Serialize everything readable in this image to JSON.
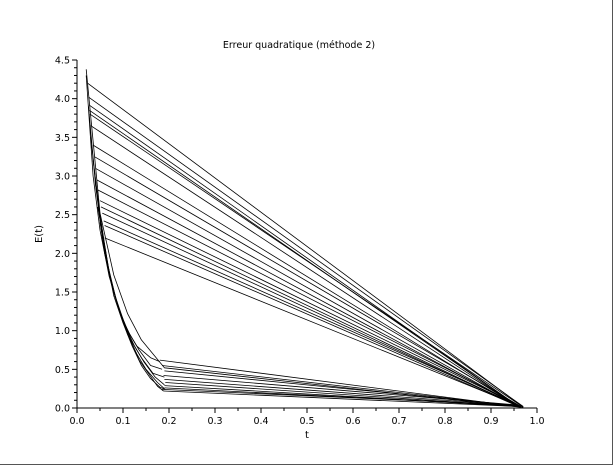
{
  "chart_data": {
    "type": "line",
    "title": "Erreur quadratique (méthode 2)",
    "xlabel": "t",
    "ylabel": "E(t)",
    "xlim": [
      0,
      1
    ],
    "ylim": [
      0,
      4.5
    ],
    "xticks": [
      "0.0",
      "0.1",
      "0.2",
      "0.3",
      "0.4",
      "0.5",
      "0.6",
      "0.7",
      "0.8",
      "0.9",
      "1.0"
    ],
    "yticks": [
      "0.0",
      "0.5",
      "1.0",
      "1.5",
      "2.0",
      "2.5",
      "3.0",
      "3.5",
      "4.0",
      "4.5"
    ],
    "grid": false,
    "legend": "none",
    "line_color": "#000000",
    "series": [
      {
        "x": [
          0.02,
          0.05,
          0.08,
          0.11,
          0.14,
          0.19,
          0.965
        ],
        "y": [
          4.38,
          2.52,
          1.72,
          1.22,
          0.88,
          0.52,
          0.01
        ]
      },
      {
        "x": [
          0.023,
          0.97
        ],
        "y": [
          4.2,
          0.01
        ]
      },
      {
        "x": [
          0.025,
          0.97
        ],
        "y": [
          4.02,
          0.02
        ]
      },
      {
        "x": [
          0.026,
          0.96
        ],
        "y": [
          3.92,
          0.02
        ]
      },
      {
        "x": [
          0.027,
          0.96
        ],
        "y": [
          3.85,
          0.02
        ]
      },
      {
        "x": [
          0.028,
          0.97
        ],
        "y": [
          3.8,
          0.01
        ]
      },
      {
        "x": [
          0.03,
          0.96
        ],
        "y": [
          3.65,
          0.02
        ]
      },
      {
        "x": [
          0.035,
          0.96
        ],
        "y": [
          3.4,
          0.02
        ]
      },
      {
        "x": [
          0.038,
          0.965
        ],
        "y": [
          3.25,
          0.02
        ]
      },
      {
        "x": [
          0.04,
          0.96
        ],
        "y": [
          3.1,
          0.02
        ]
      },
      {
        "x": [
          0.043,
          0.96
        ],
        "y": [
          2.95,
          0.02
        ]
      },
      {
        "x": [
          0.045,
          0.965
        ],
        "y": [
          2.82,
          0.02
        ]
      },
      {
        "x": [
          0.05,
          0.965
        ],
        "y": [
          2.68,
          0.02
        ]
      },
      {
        "x": [
          0.052,
          0.96
        ],
        "y": [
          2.6,
          0.02
        ]
      },
      {
        "x": [
          0.055,
          0.96
        ],
        "y": [
          2.52,
          0.02
        ]
      },
      {
        "x": [
          0.058,
          0.965
        ],
        "y": [
          2.42,
          0.02
        ]
      },
      {
        "x": [
          0.06,
          0.96
        ],
        "y": [
          2.36,
          0.02
        ]
      },
      {
        "x": [
          0.06,
          0.965
        ],
        "y": [
          2.2,
          0.02
        ]
      },
      {
        "x": [
          0.18,
          0.97
        ],
        "y": [
          0.62,
          0.01
        ]
      },
      {
        "x": [
          0.185,
          0.965
        ],
        "y": [
          0.55,
          0.02
        ]
      },
      {
        "x": [
          0.19,
          0.96
        ],
        "y": [
          0.48,
          0.03
        ]
      },
      {
        "x": [
          0.188,
          0.955
        ],
        "y": [
          0.42,
          0.04
        ]
      },
      {
        "x": [
          0.19,
          0.96
        ],
        "y": [
          0.37,
          0.03
        ]
      },
      {
        "x": [
          0.192,
          0.965
        ],
        "y": [
          0.33,
          0.02
        ]
      },
      {
        "x": [
          0.19,
          0.96
        ],
        "y": [
          0.29,
          0.02
        ]
      },
      {
        "x": [
          0.19,
          0.955
        ],
        "y": [
          0.26,
          0.03
        ]
      },
      {
        "x": [
          0.185,
          0.95
        ],
        "y": [
          0.24,
          0.04
        ]
      },
      {
        "x": [
          0.188,
          0.96
        ],
        "y": [
          0.22,
          0.02
        ]
      },
      {
        "x": [
          0.02,
          0.035,
          0.05,
          0.07,
          0.09,
          0.11,
          0.13,
          0.16,
          0.18
        ],
        "y": [
          4.3,
          3.0,
          2.3,
          1.7,
          1.3,
          1.0,
          0.8,
          0.65,
          0.6
        ]
      },
      {
        "x": [
          0.025,
          0.04,
          0.055,
          0.075,
          0.095,
          0.115,
          0.135,
          0.16,
          0.185
        ],
        "y": [
          3.9,
          2.9,
          2.2,
          1.6,
          1.2,
          0.95,
          0.75,
          0.55,
          0.5
        ]
      },
      {
        "x": [
          0.03,
          0.045,
          0.06,
          0.08,
          0.1,
          0.12,
          0.14,
          0.165,
          0.19
        ],
        "y": [
          3.5,
          2.7,
          2.0,
          1.5,
          1.15,
          0.85,
          0.65,
          0.45,
          0.4
        ]
      },
      {
        "x": [
          0.035,
          0.05,
          0.065,
          0.085,
          0.105,
          0.125,
          0.145,
          0.17,
          0.19
        ],
        "y": [
          3.2,
          2.5,
          1.9,
          1.4,
          1.05,
          0.8,
          0.6,
          0.4,
          0.3
        ]
      },
      {
        "x": [
          0.04,
          0.055,
          0.07,
          0.09,
          0.11,
          0.13,
          0.15,
          0.175,
          0.19
        ],
        "y": [
          2.9,
          2.3,
          1.75,
          1.3,
          0.95,
          0.7,
          0.5,
          0.33,
          0.25
        ]
      },
      {
        "x": [
          0.045,
          0.06,
          0.075,
          0.095,
          0.115,
          0.135,
          0.155,
          0.175,
          0.188
        ],
        "y": [
          2.6,
          2.1,
          1.6,
          1.2,
          0.9,
          0.62,
          0.45,
          0.28,
          0.22
        ]
      },
      {
        "x": [
          0.05,
          0.065,
          0.08,
          0.1,
          0.12,
          0.14,
          0.16,
          0.18,
          0.192
        ],
        "y": [
          2.4,
          1.9,
          1.45,
          1.1,
          0.8,
          0.55,
          0.38,
          0.27,
          0.24
        ]
      }
    ]
  }
}
